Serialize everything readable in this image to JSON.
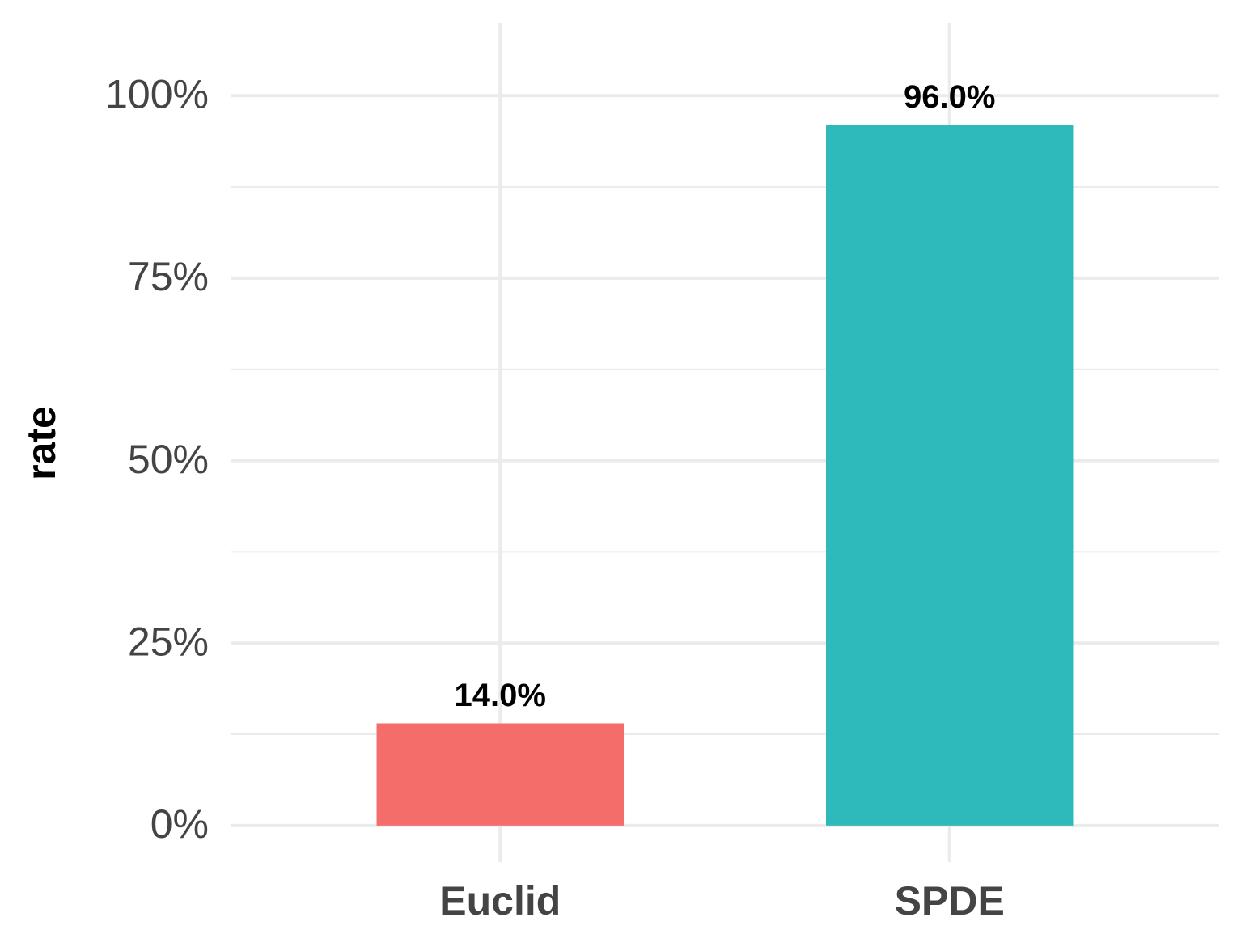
{
  "chart_data": {
    "type": "bar",
    "y_label": "rate",
    "categories": [
      "Euclid",
      "SPDE"
    ],
    "values": [
      14,
      96
    ],
    "value_labels": [
      "14.0%",
      "96.0%"
    ],
    "colors": [
      "#f46d6b",
      "#2eb9bb"
    ],
    "ylim": [
      -5,
      110
    ],
    "yticks": [
      {
        "value": 0,
        "label": "0%"
      },
      {
        "value": 25,
        "label": "25%"
      },
      {
        "value": 50,
        "label": "50%"
      },
      {
        "value": 75,
        "label": "75%"
      },
      {
        "value": 100,
        "label": "100%"
      }
    ],
    "minor_yticks": [
      12.5,
      37.5,
      62.5,
      87.5
    ],
    "grid": true
  }
}
